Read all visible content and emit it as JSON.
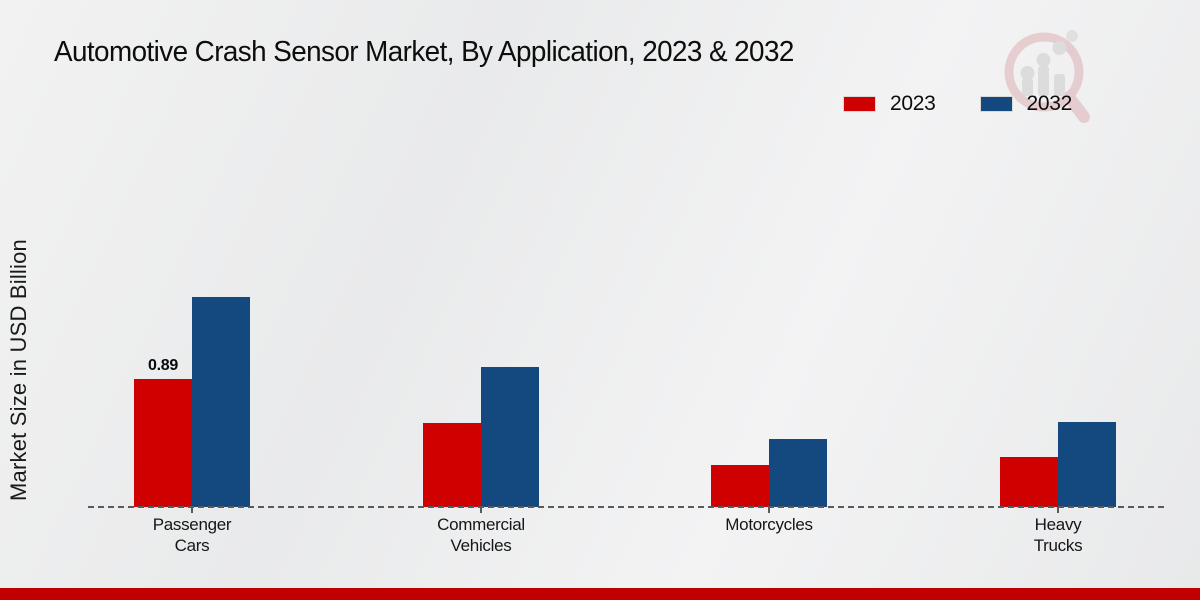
{
  "title": "Automotive Crash Sensor Market, By Application, 2023 & 2032",
  "ylabel": "Market Size in USD Billion",
  "legend": [
    {
      "label": "2023",
      "color": "#CE0000"
    },
    {
      "label": "2032",
      "color": "#14497F"
    }
  ],
  "colors": {
    "bar_2023": "#CE0000",
    "bar_2032": "#14497F",
    "baseline": "#5a5a5a",
    "footer_band": "#C00000",
    "background": "#ECECEC"
  },
  "watermark_icon": "magnifier-bar-chart-logo",
  "chart_data": {
    "type": "bar",
    "title": "Automotive Crash Sensor Market, By Application, 2023 & 2032",
    "xlabel": "",
    "ylabel": "Market Size in USD Billion",
    "categories": [
      "Passenger Cars",
      "Commercial Vehicles",
      "Motorcycles",
      "Heavy Trucks"
    ],
    "category_lines": [
      [
        "Passenger",
        "Cars"
      ],
      [
        "Commercial",
        "Vehicles"
      ],
      [
        "Motorcycles"
      ],
      [
        "Heavy",
        "Trucks"
      ]
    ],
    "series": [
      {
        "name": "2023",
        "color": "#CE0000",
        "values": [
          0.89,
          0.58,
          0.29,
          0.35
        ]
      },
      {
        "name": "2032",
        "color": "#14497F",
        "values": [
          1.46,
          0.97,
          0.47,
          0.59
        ]
      }
    ],
    "data_labels": [
      {
        "category_index": 0,
        "series_index": 0,
        "text": "0.89"
      }
    ],
    "ylim": [
      0,
      1.6
    ],
    "grid": false,
    "axis_line_style": "dashed",
    "legend_position": "top-right"
  }
}
